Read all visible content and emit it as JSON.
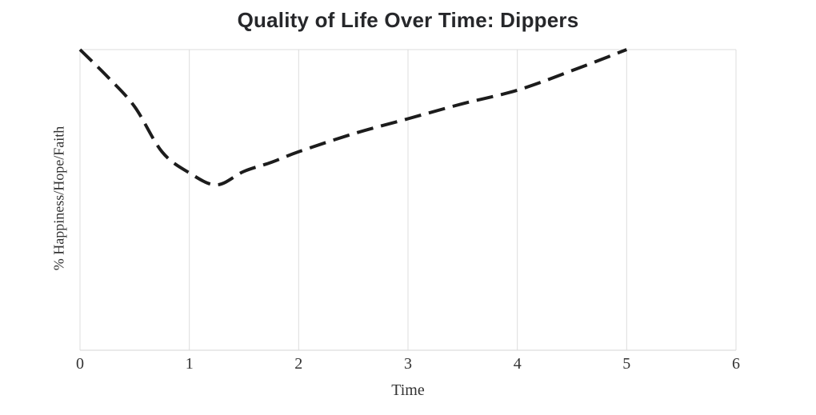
{
  "chart_data": {
    "type": "line",
    "title": "Quality of Life Over Time: Dippers",
    "xlabel": "Time",
    "ylabel": "% Happiness/Hope/Faith",
    "xlim": [
      0,
      6
    ],
    "ylim": [
      0,
      100
    ],
    "x_ticks": [
      0,
      1,
      2,
      3,
      4,
      5,
      6
    ],
    "x_tick_labels": [
      "0",
      "1",
      "2",
      "3",
      "4",
      "5",
      "6"
    ],
    "y_tick_labels": [],
    "grid": "vertical-only",
    "legend_position": "none",
    "series": [
      {
        "name": "Dippers",
        "line_style": "dashed",
        "color": "#1c1c1c",
        "points": [
          [
            0,
            100
          ],
          [
            0.25,
            91
          ],
          [
            0.5,
            81
          ],
          [
            0.75,
            66
          ],
          [
            1.0,
            59
          ],
          [
            1.25,
            55
          ],
          [
            1.5,
            59.5
          ],
          [
            1.75,
            62.5
          ],
          [
            2.0,
            66
          ],
          [
            2.5,
            72
          ],
          [
            3.0,
            77
          ],
          [
            3.5,
            82
          ],
          [
            4.0,
            86.5
          ],
          [
            4.5,
            93
          ],
          [
            5.0,
            100
          ]
        ]
      }
    ]
  },
  "colors": {
    "background": "#ffffff",
    "grid": "#dcdcdc",
    "axis": "#d6d6d6",
    "title": "#26272a",
    "label": "#333333",
    "line": "#1c1c1c"
  }
}
